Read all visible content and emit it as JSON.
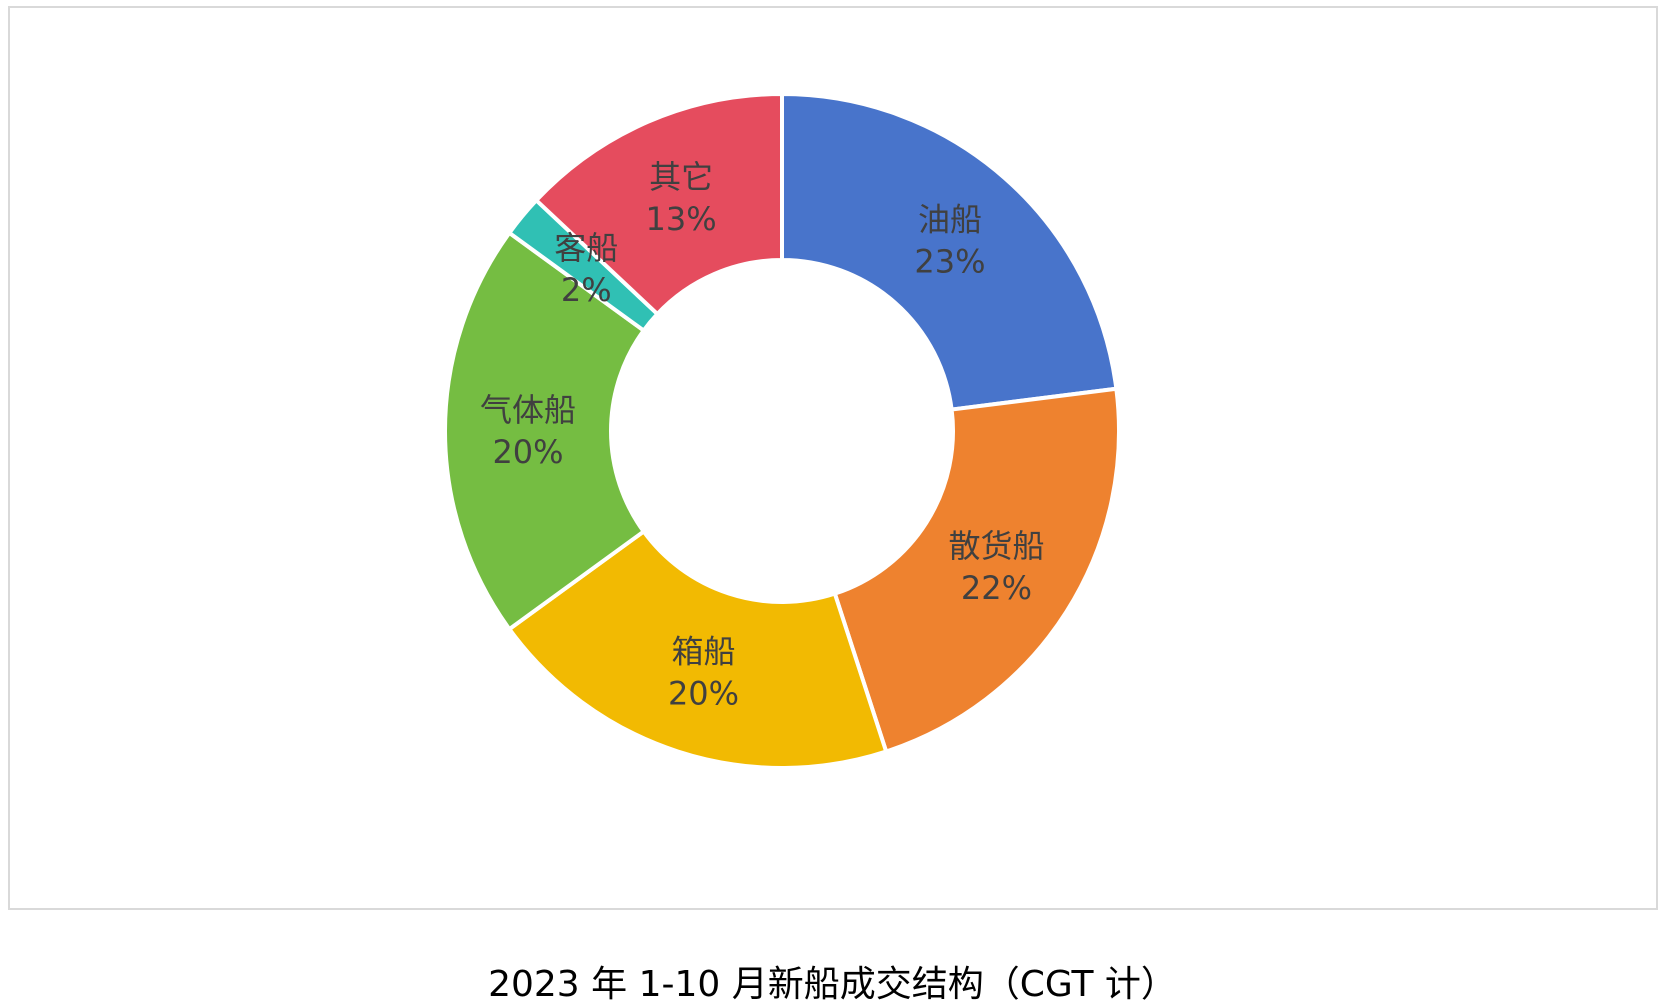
{
  "caption": "2023 年 1-10 月新船成交结构（CGT 计）",
  "chart_data": {
    "type": "pie",
    "style": "donut",
    "start_angle_deg": 0,
    "direction": "clockwise",
    "slices": [
      {
        "name": "油船",
        "value": 23,
        "label": "23%",
        "color": "#4874cb"
      },
      {
        "name": "散货船",
        "value": 22,
        "label": "22%",
        "color": "#ee822f"
      },
      {
        "name": "箱船",
        "value": 20,
        "label": "20%",
        "color": "#f2ba02"
      },
      {
        "name": "气体船",
        "value": 20,
        "label": "20%",
        "color": "#75bd42"
      },
      {
        "name": "客船",
        "value": 2,
        "label": "2%",
        "color": "#30c0b4"
      },
      {
        "name": "其它",
        "value": 13,
        "label": "13%",
        "color": "#e54c5e"
      }
    ]
  }
}
